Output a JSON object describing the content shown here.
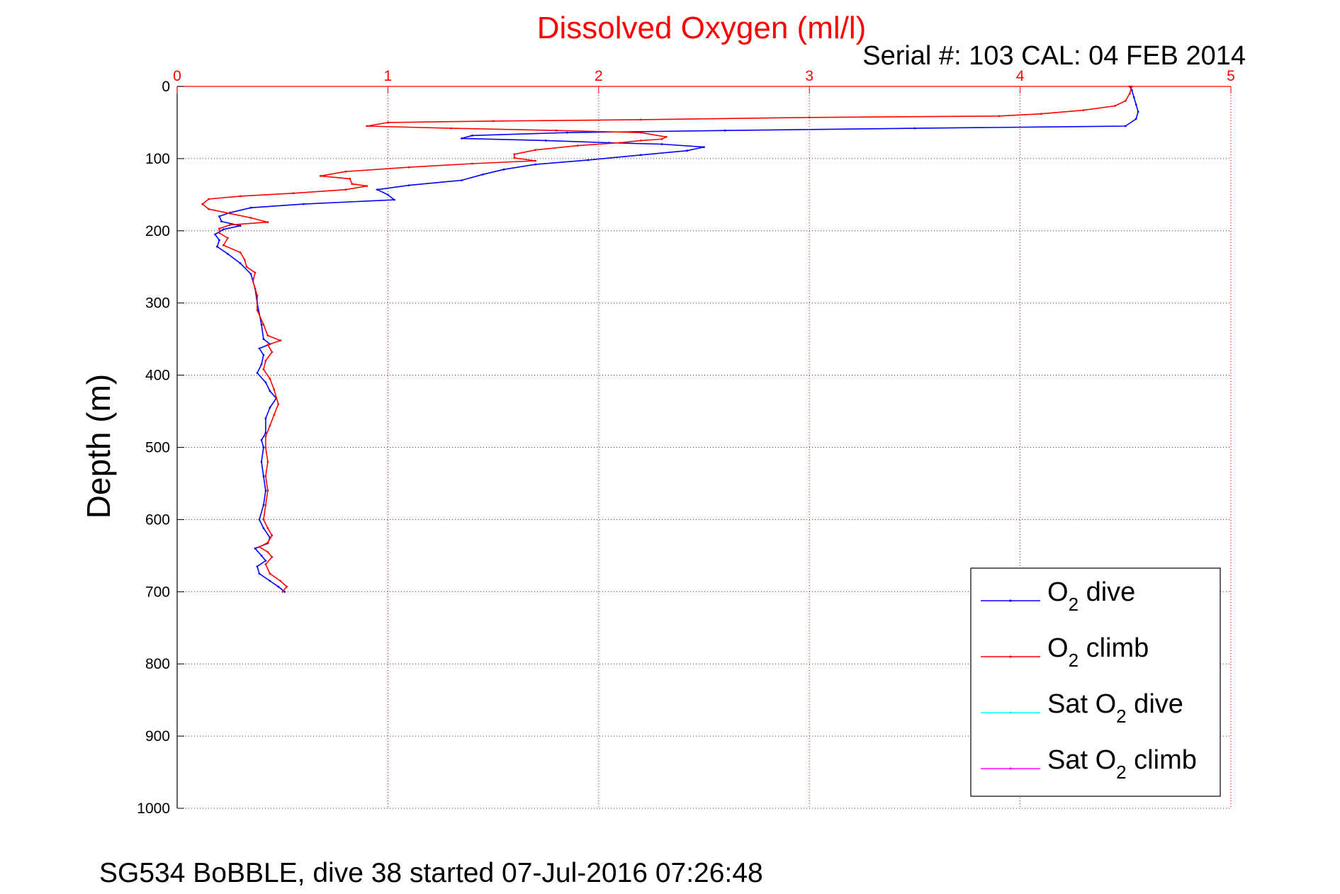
{
  "chart_data": {
    "type": "line",
    "title": "Dissolved Oxygen (ml/l)",
    "subtitle": "Serial #: 103  CAL: 04 FEB 2014",
    "footer": "SG534 BoBBLE, dive 38 started 07-Jul-2016 07:26:48",
    "xlabel": "",
    "ylabel": "Depth (m)",
    "xlim": [
      0,
      5
    ],
    "ylim": [
      0,
      1000
    ],
    "y_reversed": true,
    "x_axis_position": "top",
    "x_ticks": [
      "0",
      "1",
      "2",
      "3",
      "4",
      "5"
    ],
    "y_ticks": [
      "0",
      "100",
      "200",
      "300",
      "400",
      "500",
      "600",
      "700",
      "800",
      "900",
      "1000"
    ],
    "grid": true,
    "legend_position": "bottom-right",
    "colors": {
      "title": "#ff0000",
      "x_axis": "#ff0000",
      "dive": "#0000ff",
      "climb": "#ff0000",
      "sat_dive": "#00ffff",
      "sat_climb": "#ff00ff"
    },
    "legend": [
      {
        "prefix": "O",
        "sub": "2",
        "suffix": " dive",
        "color": "#0000ff"
      },
      {
        "prefix": "O",
        "sub": "2",
        "suffix": " climb",
        "color": "#ff0000"
      },
      {
        "prefix": "Sat O",
        "sub": "2",
        "suffix": " dive",
        "color": "#00ffff"
      },
      {
        "prefix": "Sat O",
        "sub": "2",
        "suffix": " climb",
        "color": "#ff00ff"
      }
    ],
    "series": [
      {
        "key": "dive",
        "color": "#0000ff",
        "points": [
          [
            4.52,
            0
          ],
          [
            4.53,
            5
          ],
          [
            4.54,
            15
          ],
          [
            4.55,
            25
          ],
          [
            4.56,
            35
          ],
          [
            4.55,
            45
          ],
          [
            4.5,
            55
          ],
          [
            3.5,
            58
          ],
          [
            2.6,
            61
          ],
          [
            1.85,
            64
          ],
          [
            1.4,
            68
          ],
          [
            1.35,
            72
          ],
          [
            1.75,
            75
          ],
          [
            2.05,
            78
          ],
          [
            2.3,
            80
          ],
          [
            2.5,
            84
          ],
          [
            2.42,
            89
          ],
          [
            2.2,
            95
          ],
          [
            1.95,
            102
          ],
          [
            1.7,
            108
          ],
          [
            1.55,
            115
          ],
          [
            1.45,
            122
          ],
          [
            1.35,
            130
          ],
          [
            1.1,
            137
          ],
          [
            0.95,
            143
          ],
          [
            1.0,
            150
          ],
          [
            1.03,
            157
          ],
          [
            0.6,
            163
          ],
          [
            0.35,
            168
          ],
          [
            0.25,
            175
          ],
          [
            0.2,
            180
          ],
          [
            0.21,
            187
          ],
          [
            0.3,
            193
          ],
          [
            0.22,
            198
          ],
          [
            0.18,
            205
          ],
          [
            0.2,
            213
          ],
          [
            0.19,
            222
          ],
          [
            0.24,
            232
          ],
          [
            0.3,
            245
          ],
          [
            0.35,
            260
          ],
          [
            0.37,
            280
          ],
          [
            0.38,
            300
          ],
          [
            0.4,
            330
          ],
          [
            0.41,
            350
          ],
          [
            0.44,
            357
          ],
          [
            0.39,
            363
          ],
          [
            0.41,
            372
          ],
          [
            0.4,
            385
          ],
          [
            0.38,
            397
          ],
          [
            0.42,
            410
          ],
          [
            0.44,
            422
          ],
          [
            0.47,
            432
          ],
          [
            0.44,
            445
          ],
          [
            0.42,
            460
          ],
          [
            0.42,
            480
          ],
          [
            0.4,
            490
          ],
          [
            0.41,
            500
          ],
          [
            0.4,
            520
          ],
          [
            0.41,
            540
          ],
          [
            0.42,
            560
          ],
          [
            0.41,
            580
          ],
          [
            0.39,
            600
          ],
          [
            0.41,
            612
          ],
          [
            0.44,
            625
          ],
          [
            0.43,
            633
          ],
          [
            0.37,
            640
          ],
          [
            0.4,
            650
          ],
          [
            0.42,
            657
          ],
          [
            0.38,
            665
          ],
          [
            0.39,
            675
          ],
          [
            0.44,
            685
          ],
          [
            0.48,
            693
          ],
          [
            0.51,
            700
          ]
        ]
      },
      {
        "key": "climb",
        "color": "#ff0000",
        "points": [
          [
            4.53,
            0
          ],
          [
            4.52,
            10
          ],
          [
            4.5,
            20
          ],
          [
            4.45,
            27
          ],
          [
            4.3,
            33
          ],
          [
            4.1,
            38
          ],
          [
            3.9,
            41
          ],
          [
            3.0,
            43
          ],
          [
            2.2,
            46
          ],
          [
            1.5,
            48
          ],
          [
            1.0,
            50
          ],
          [
            0.9,
            55
          ],
          [
            1.3,
            58
          ],
          [
            1.8,
            61
          ],
          [
            2.2,
            64
          ],
          [
            2.32,
            70
          ],
          [
            2.3,
            73
          ],
          [
            2.2,
            75
          ],
          [
            2.1,
            78
          ],
          [
            1.9,
            82
          ],
          [
            1.7,
            88
          ],
          [
            1.6,
            94
          ],
          [
            1.6,
            99
          ],
          [
            1.7,
            103
          ],
          [
            1.4,
            107
          ],
          [
            1.1,
            112
          ],
          [
            0.8,
            118
          ],
          [
            0.68,
            124
          ],
          [
            0.82,
            128
          ],
          [
            0.83,
            135
          ],
          [
            0.9,
            138
          ],
          [
            0.8,
            143
          ],
          [
            0.55,
            148
          ],
          [
            0.3,
            152
          ],
          [
            0.15,
            156
          ],
          [
            0.12,
            163
          ],
          [
            0.15,
            170
          ],
          [
            0.25,
            176
          ],
          [
            0.35,
            182
          ],
          [
            0.43,
            188
          ],
          [
            0.25,
            192
          ],
          [
            0.2,
            197
          ],
          [
            0.2,
            203
          ],
          [
            0.24,
            210
          ],
          [
            0.22,
            220
          ],
          [
            0.3,
            230
          ],
          [
            0.32,
            240
          ],
          [
            0.33,
            250
          ],
          [
            0.37,
            258
          ],
          [
            0.36,
            270
          ],
          [
            0.38,
            290
          ],
          [
            0.38,
            310
          ],
          [
            0.41,
            330
          ],
          [
            0.43,
            345
          ],
          [
            0.49,
            352
          ],
          [
            0.43,
            358
          ],
          [
            0.45,
            368
          ],
          [
            0.42,
            380
          ],
          [
            0.41,
            392
          ],
          [
            0.44,
            405
          ],
          [
            0.46,
            420
          ],
          [
            0.48,
            440
          ],
          [
            0.46,
            455
          ],
          [
            0.44,
            470
          ],
          [
            0.42,
            485
          ],
          [
            0.42,
            500
          ],
          [
            0.43,
            520
          ],
          [
            0.42,
            540
          ],
          [
            0.43,
            560
          ],
          [
            0.42,
            580
          ],
          [
            0.41,
            600
          ],
          [
            0.43,
            612
          ],
          [
            0.45,
            622
          ],
          [
            0.43,
            632
          ],
          [
            0.39,
            638
          ],
          [
            0.43,
            645
          ],
          [
            0.45,
            652
          ],
          [
            0.42,
            662
          ],
          [
            0.44,
            675
          ],
          [
            0.49,
            685
          ],
          [
            0.52,
            693
          ],
          [
            0.5,
            700
          ]
        ]
      }
    ]
  }
}
